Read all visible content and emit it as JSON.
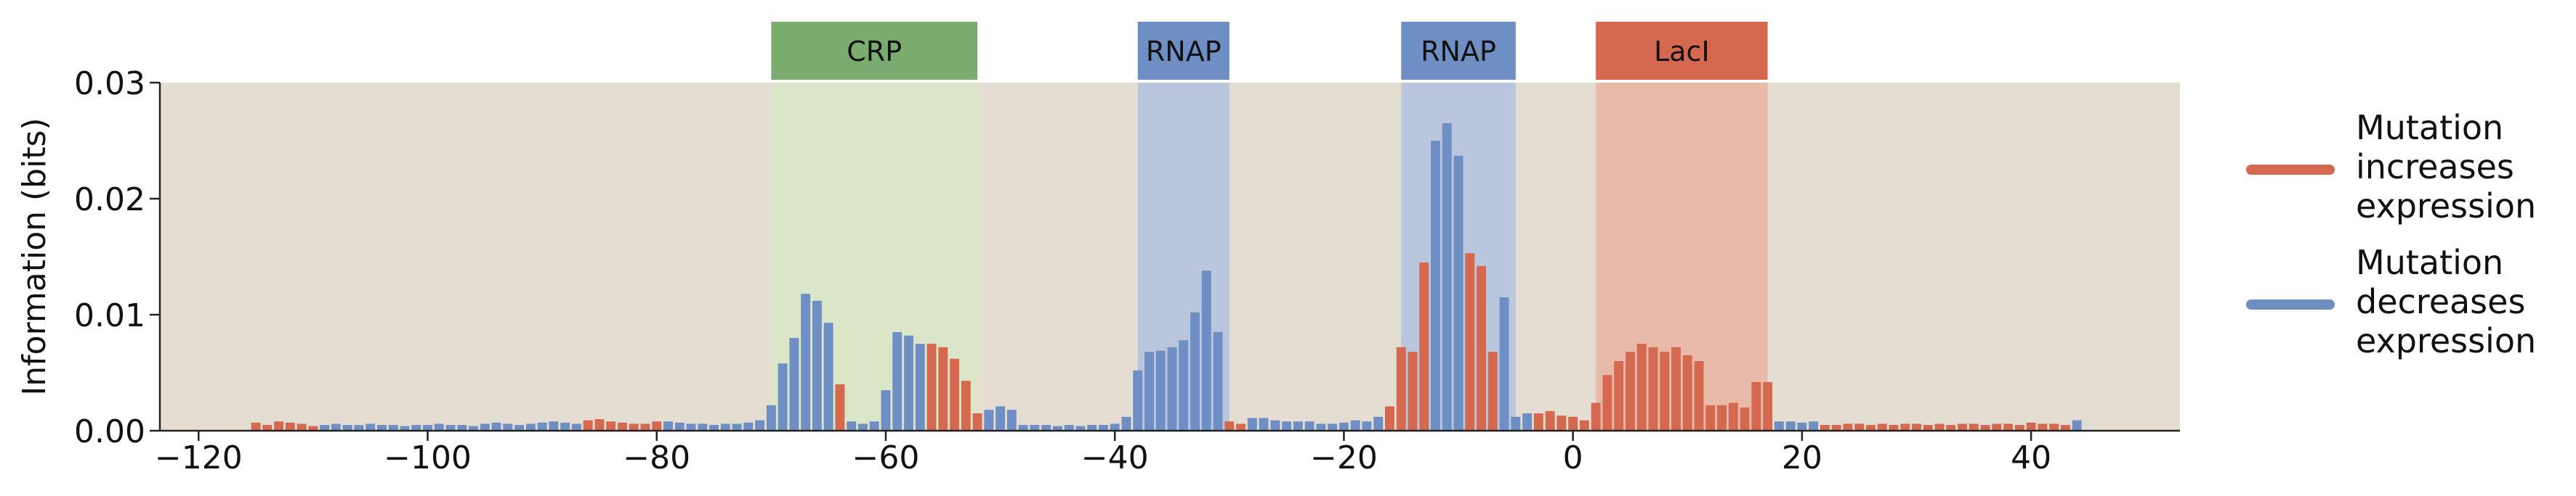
{
  "chart_data": {
    "type": "bar",
    "xlabel": "",
    "ylabel": "Information (bits)",
    "xlim": [
      -123,
      53
    ],
    "ylim": [
      0,
      0.03
    ],
    "x_ticks": [
      -120,
      -100,
      -80,
      -60,
      -40,
      -20,
      0,
      20,
      40
    ],
    "x_tick_labels": [
      "−120",
      "−100",
      "−80",
      "−60",
      "−40",
      "−20",
      "0",
      "20",
      "40"
    ],
    "y_ticks": [
      0,
      0.01,
      0.02,
      0.03
    ],
    "y_tick_labels": [
      "0.00",
      "0.01",
      "0.02",
      "0.03"
    ],
    "grid": false,
    "legend_position": "right",
    "colors": {
      "increase": "#d4694f",
      "decrease": "#6f8fc4",
      "plot_background": "#e4ddd2",
      "crp": "#7aab6f",
      "rnap": "#6f8fc4",
      "laci": "#d4694f",
      "crp_shade": "#dbe6c9",
      "rnap_shade": "#b9c6dd",
      "laci_shade": "#e9baa9"
    },
    "regions": [
      {
        "label": "CRP",
        "start": -70,
        "end": -52,
        "kind": "crp"
      },
      {
        "label": "RNAP",
        "start": -38,
        "end": -30,
        "kind": "rnap"
      },
      {
        "label": "RNAP",
        "start": -15,
        "end": -5,
        "kind": "rnap"
      },
      {
        "label": "LacI",
        "start": 2,
        "end": 17,
        "kind": "laci"
      }
    ],
    "legend": [
      {
        "label_lines": [
          "Mutation",
          "increases",
          "expression"
        ],
        "kind": "increase"
      },
      {
        "label_lines": [
          "Mutation",
          "decreases",
          "expression"
        ],
        "kind": "decrease"
      }
    ],
    "series": [
      {
        "kind": "increase",
        "x": [
          -115,
          -114,
          -113,
          -112,
          -111,
          -110,
          -86,
          -85,
          -84,
          -83,
          -82,
          -81,
          -80,
          -64,
          -56,
          -55,
          -54,
          -53,
          -52,
          -30,
          -29,
          -16,
          -15,
          -14,
          -13,
          -9,
          -8,
          -7,
          -3,
          -2,
          -1,
          0,
          1,
          2,
          3,
          4,
          5,
          6,
          7,
          8,
          9,
          10,
          11,
          12,
          13,
          14,
          15,
          16,
          17,
          22,
          23,
          24,
          25,
          26,
          27,
          28,
          29,
          30,
          31,
          32,
          33,
          34,
          35,
          36,
          37,
          38,
          39,
          40,
          41,
          42,
          43
        ],
        "values": [
          0.0007,
          0.0005,
          0.0008,
          0.0007,
          0.0006,
          0.0004,
          0.0009,
          0.001,
          0.0008,
          0.0007,
          0.0006,
          0.0006,
          0.0008,
          0.004,
          0.0075,
          0.0072,
          0.0062,
          0.0043,
          0.0015,
          0.0008,
          0.0006,
          0.0021,
          0.0072,
          0.0068,
          0.0145,
          0.0153,
          0.0142,
          0.0068,
          0.0015,
          0.0017,
          0.0013,
          0.0012,
          0.0009,
          0.0024,
          0.0048,
          0.006,
          0.0068,
          0.0075,
          0.0072,
          0.0068,
          0.0072,
          0.0065,
          0.006,
          0.0022,
          0.0022,
          0.0024,
          0.002,
          0.0042,
          0.0042,
          0.0005,
          0.0005,
          0.0006,
          0.0006,
          0.0005,
          0.0006,
          0.0005,
          0.0006,
          0.0006,
          0.0005,
          0.0006,
          0.0005,
          0.0006,
          0.0006,
          0.0005,
          0.0006,
          0.0006,
          0.0005,
          0.0007,
          0.0006,
          0.0006,
          0.0005
        ]
      },
      {
        "kind": "decrease",
        "x": [
          -109,
          -108,
          -107,
          -106,
          -105,
          -104,
          -103,
          -102,
          -101,
          -100,
          -99,
          -98,
          -97,
          -96,
          -95,
          -94,
          -93,
          -92,
          -91,
          -90,
          -89,
          -88,
          -87,
          -79,
          -78,
          -77,
          -76,
          -75,
          -74,
          -73,
          -72,
          -71,
          -70,
          -69,
          -68,
          -67,
          -66,
          -65,
          -63,
          -62,
          -61,
          -60,
          -59,
          -58,
          -57,
          -51,
          -50,
          -49,
          -48,
          -47,
          -46,
          -45,
          -44,
          -43,
          -42,
          -41,
          -40,
          -39,
          -38,
          -37,
          -36,
          -35,
          -34,
          -33,
          -32,
          -31,
          -28,
          -27,
          -26,
          -25,
          -24,
          -23,
          -22,
          -21,
          -20,
          -19,
          -18,
          -17,
          -12,
          -11,
          -10,
          -6,
          -5,
          -4,
          18,
          19,
          20,
          21,
          44
        ],
        "values": [
          0.0005,
          0.0006,
          0.0005,
          0.0005,
          0.0006,
          0.0005,
          0.0005,
          0.0004,
          0.0005,
          0.0005,
          0.0006,
          0.0005,
          0.0005,
          0.0004,
          0.0006,
          0.0007,
          0.0006,
          0.0005,
          0.0006,
          0.0007,
          0.0008,
          0.0007,
          0.0006,
          0.0008,
          0.0007,
          0.0006,
          0.0006,
          0.0005,
          0.0006,
          0.0006,
          0.0007,
          0.0009,
          0.0022,
          0.0058,
          0.008,
          0.0118,
          0.0112,
          0.0093,
          0.0008,
          0.0006,
          0.0008,
          0.0035,
          0.0085,
          0.0082,
          0.0075,
          0.0018,
          0.0021,
          0.0018,
          0.0005,
          0.0005,
          0.0005,
          0.0004,
          0.0005,
          0.0004,
          0.0005,
          0.0005,
          0.0006,
          0.0012,
          0.0052,
          0.0068,
          0.0069,
          0.0072,
          0.0078,
          0.0102,
          0.0138,
          0.0085,
          0.0011,
          0.0011,
          0.0009,
          0.0008,
          0.0008,
          0.0008,
          0.0006,
          0.0006,
          0.0007,
          0.0009,
          0.0008,
          0.0012,
          0.025,
          0.0265,
          0.0237,
          0.0115,
          0.0012,
          0.0015,
          0.0008,
          0.0008,
          0.0007,
          0.0008,
          0.0009
        ]
      }
    ]
  }
}
